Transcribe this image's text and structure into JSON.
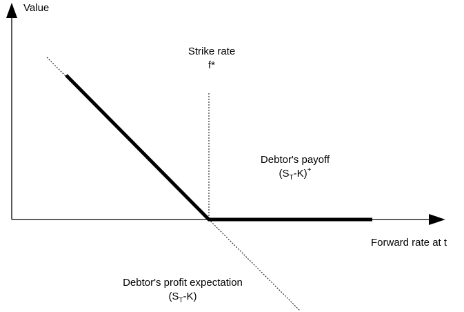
{
  "axes": {
    "y_label": "Value",
    "x_label": "Forward rate at t"
  },
  "strike": {
    "label": "Strike rate",
    "symbol": "f*"
  },
  "payoff": {
    "label": "Debtor's payoff",
    "formula": [
      "(S",
      "T",
      "-K)",
      "+"
    ]
  },
  "expectation": {
    "label": "Debtor's profit expectation",
    "formula": [
      "(S",
      "T",
      "-K)"
    ]
  }
}
